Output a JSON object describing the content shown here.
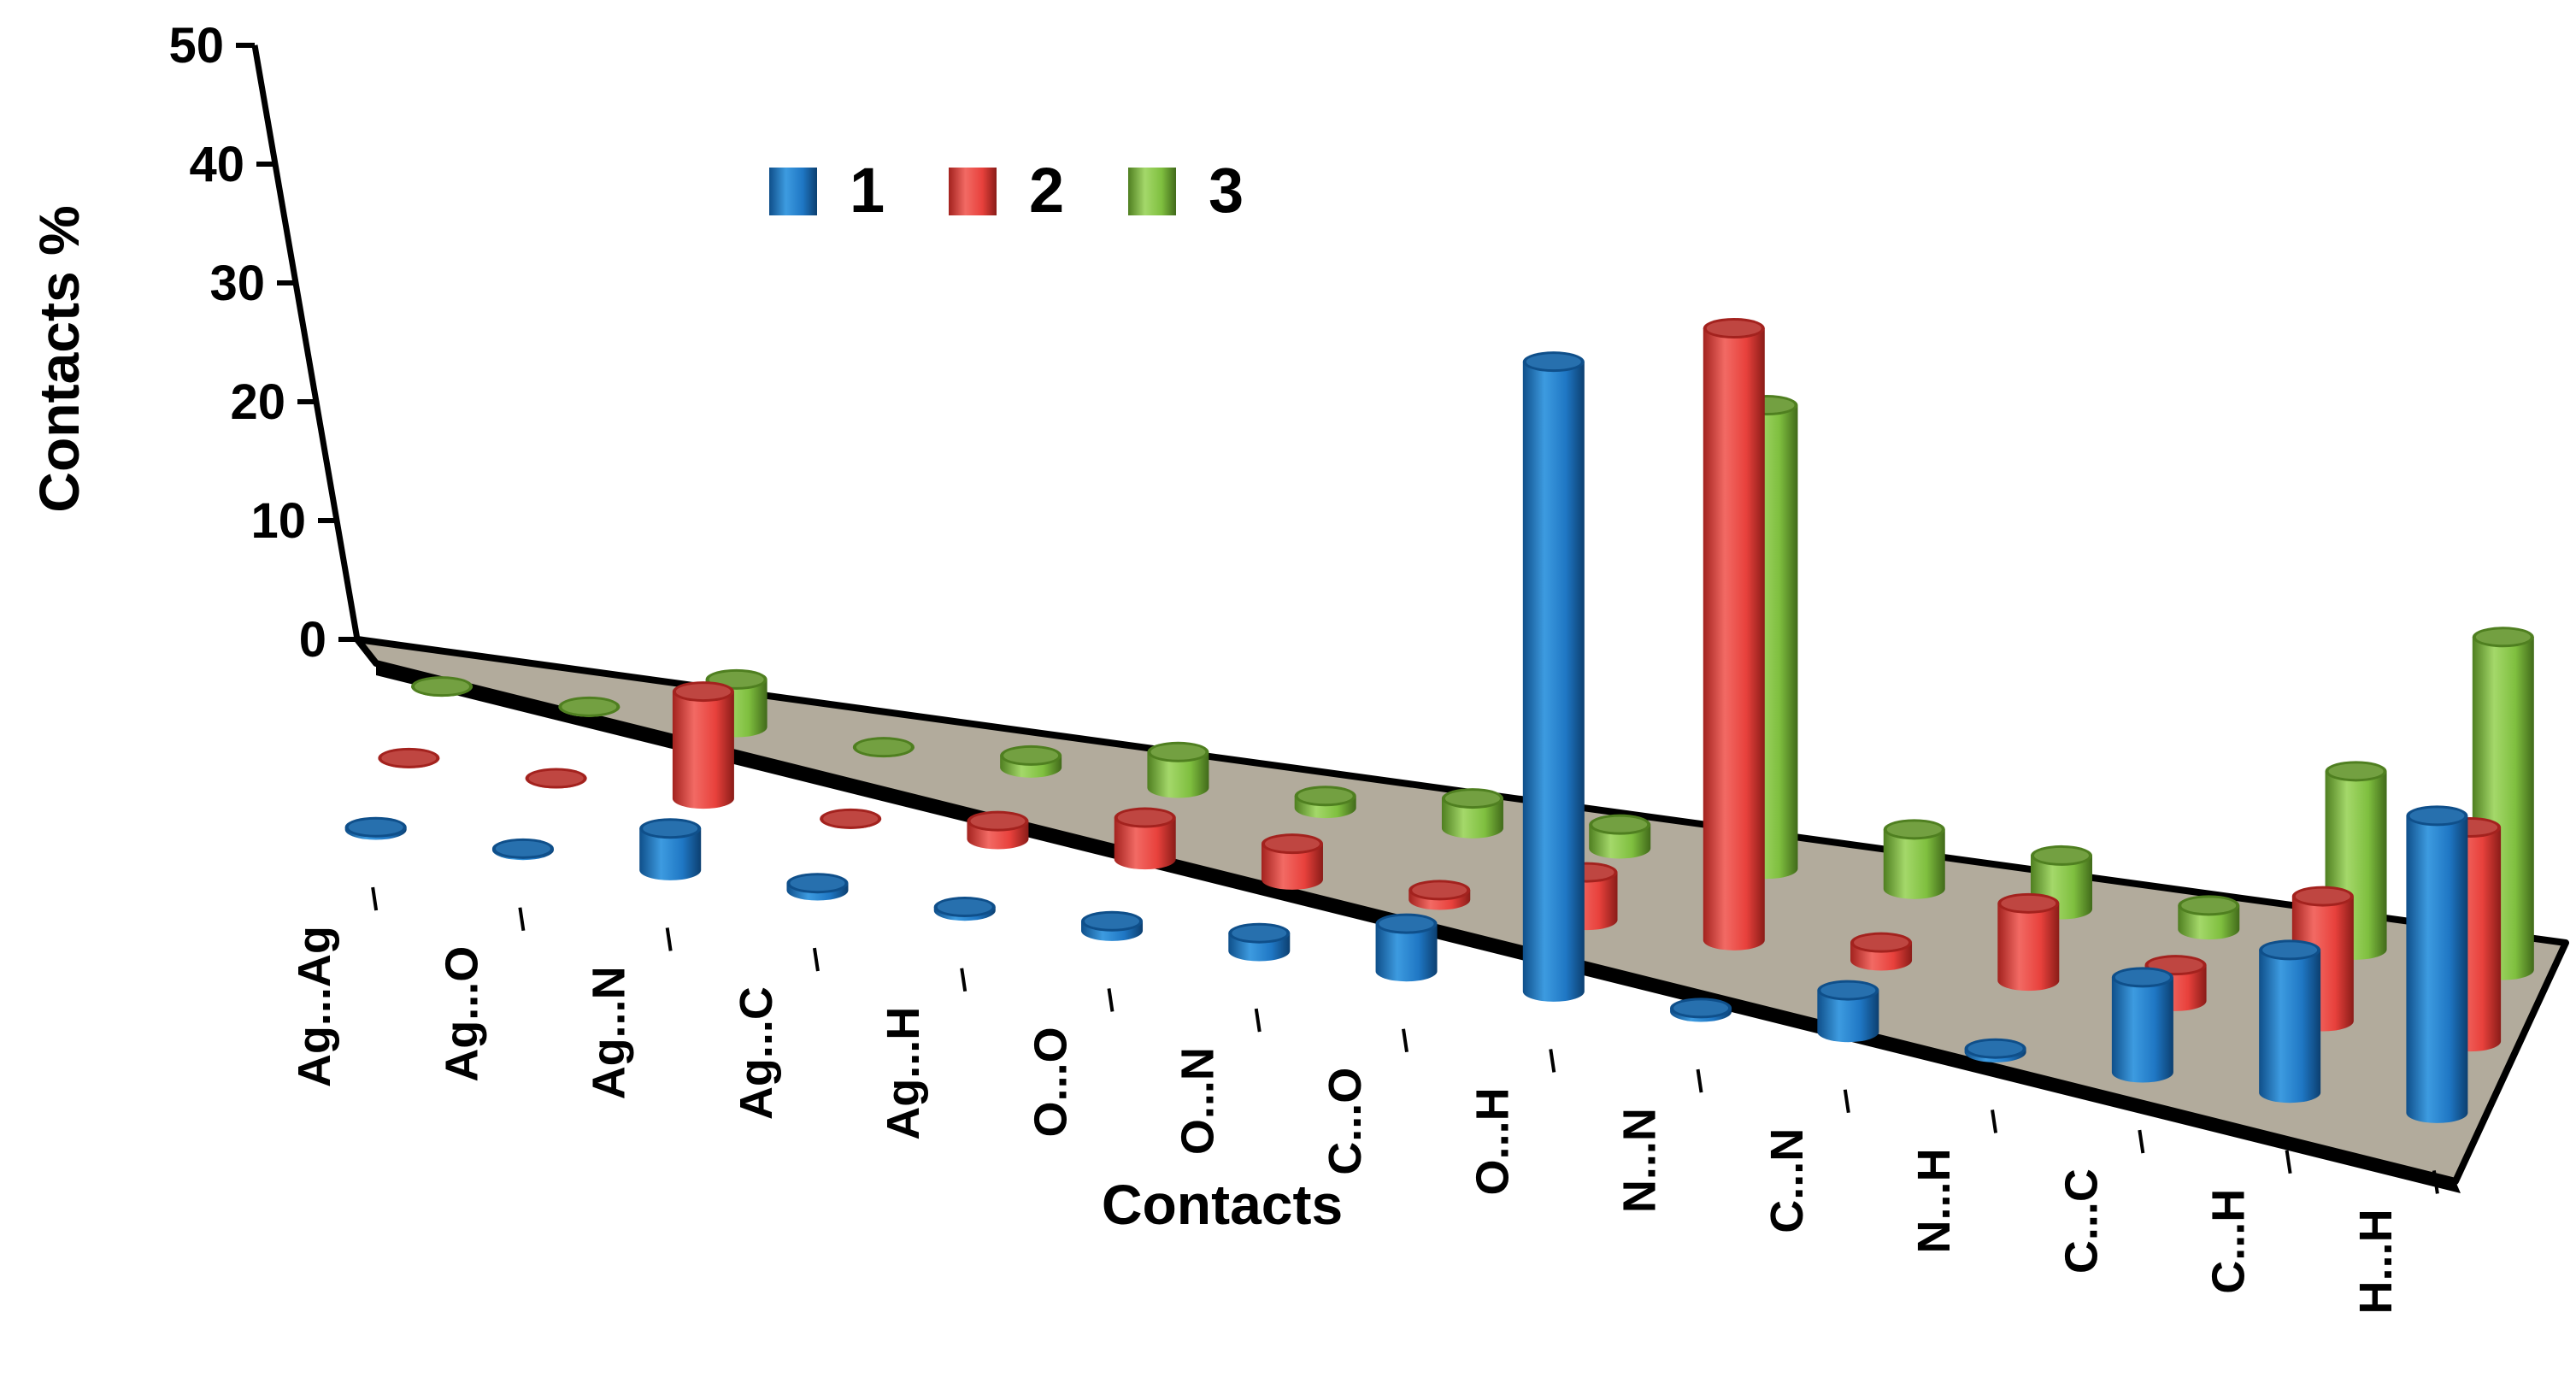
{
  "chart_data": {
    "type": "bar",
    "style": "3d-cylinder",
    "ylabel": "Contacts %",
    "xlabel": "Contacts",
    "ylim": [
      0,
      50
    ],
    "yticks": [
      "0",
      "10",
      "20",
      "30",
      "40",
      "50"
    ],
    "categories": [
      "Ag...Ag",
      "Ag...O",
      "Ag...N",
      "Ag...C",
      "Ag...H",
      "O...O",
      "O...N",
      "C...O",
      "O...H",
      "N...N",
      "C...N",
      "N...H",
      "C...C",
      "C...H",
      "H...H"
    ],
    "legend_position": "top-center",
    "series": [
      {
        "name": "1",
        "color": "#1f77c4",
        "values": [
          0.2,
          0.1,
          3.5,
          0.6,
          0.3,
          0.8,
          1.5,
          4.0,
          53.0,
          0.3,
          3.5,
          0.3,
          8.0,
          12.0,
          25.0
        ]
      },
      {
        "name": "2",
        "color": "#e8413c",
        "values": [
          0,
          0,
          9.0,
          0,
          1.5,
          3.5,
          3.0,
          0.8,
          4.0,
          51.5,
          1.5,
          6.5,
          3.0,
          10.5,
          18.0
        ]
      },
      {
        "name": "3",
        "color": "#7fbf3f",
        "values": [
          0,
          0,
          4.0,
          0,
          1.0,
          3.0,
          1.0,
          2.5,
          2.0,
          39.0,
          5.0,
          4.5,
          2.0,
          15.0,
          28.0
        ]
      }
    ]
  }
}
